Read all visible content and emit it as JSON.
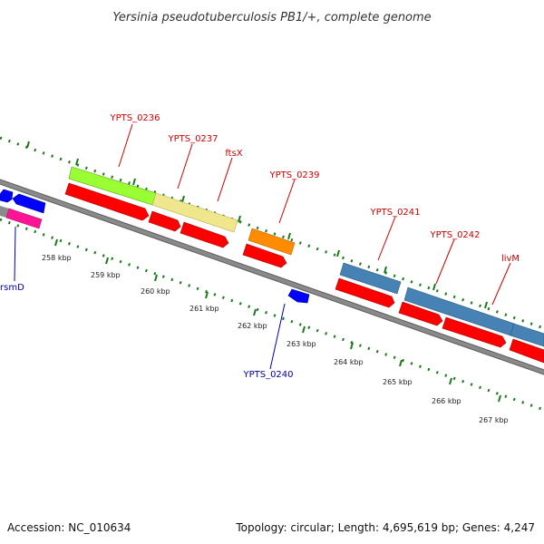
{
  "title": "Yersinia pseudotuberculosis PB1/+, complete genome",
  "footer": {
    "accession": "Accession: NC_010634",
    "info": "Topology: circular; Length: 4,695,619 bp; Genes: 4,247"
  },
  "colors": {
    "backbone": "#808080",
    "tick_major": "#1a7a1a",
    "tick_minor": "#1a7a1a",
    "label_red": "#cc0000",
    "label_blue": "#0000aa",
    "cds": "#ff0000",
    "feature_blue": "#0000ff",
    "feature_steel": "#4682b4",
    "feature_orange": "#ff8c00",
    "feature_green": "#99ff33",
    "feature_khaki": "#f0e68c",
    "feature_magenta": "#ff1493"
  },
  "axis": {
    "tick_labels": [
      "258 kbp",
      "259 kbp",
      "260 kbp",
      "261 kbp",
      "262 kbp",
      "263 kbp",
      "264 kbp",
      "265 kbp",
      "266 kbp",
      "267 kbp"
    ]
  },
  "features": [
    {
      "name": "rsmD",
      "color_key": "feature_blue",
      "strand": "reverse"
    },
    {
      "name": "YPTS_0236",
      "color_key": "feature_green",
      "strand": "forward"
    },
    {
      "name": "YPTS_0237",
      "color_key": "feature_khaki",
      "strand": "forward"
    },
    {
      "name": "ftsX",
      "color_key": "cds",
      "strand": "forward"
    },
    {
      "name": "YPTS_0239",
      "color_key": "feature_orange",
      "strand": "forward"
    },
    {
      "name": "YPTS_0240",
      "color_key": "feature_blue",
      "strand": "reverse"
    },
    {
      "name": "YPTS_0241",
      "color_key": "feature_steel",
      "strand": "forward"
    },
    {
      "name": "YPTS_0242",
      "color_key": "feature_steel",
      "strand": "forward"
    },
    {
      "name": "livM",
      "color_key": "feature_steel",
      "strand": "forward"
    }
  ]
}
